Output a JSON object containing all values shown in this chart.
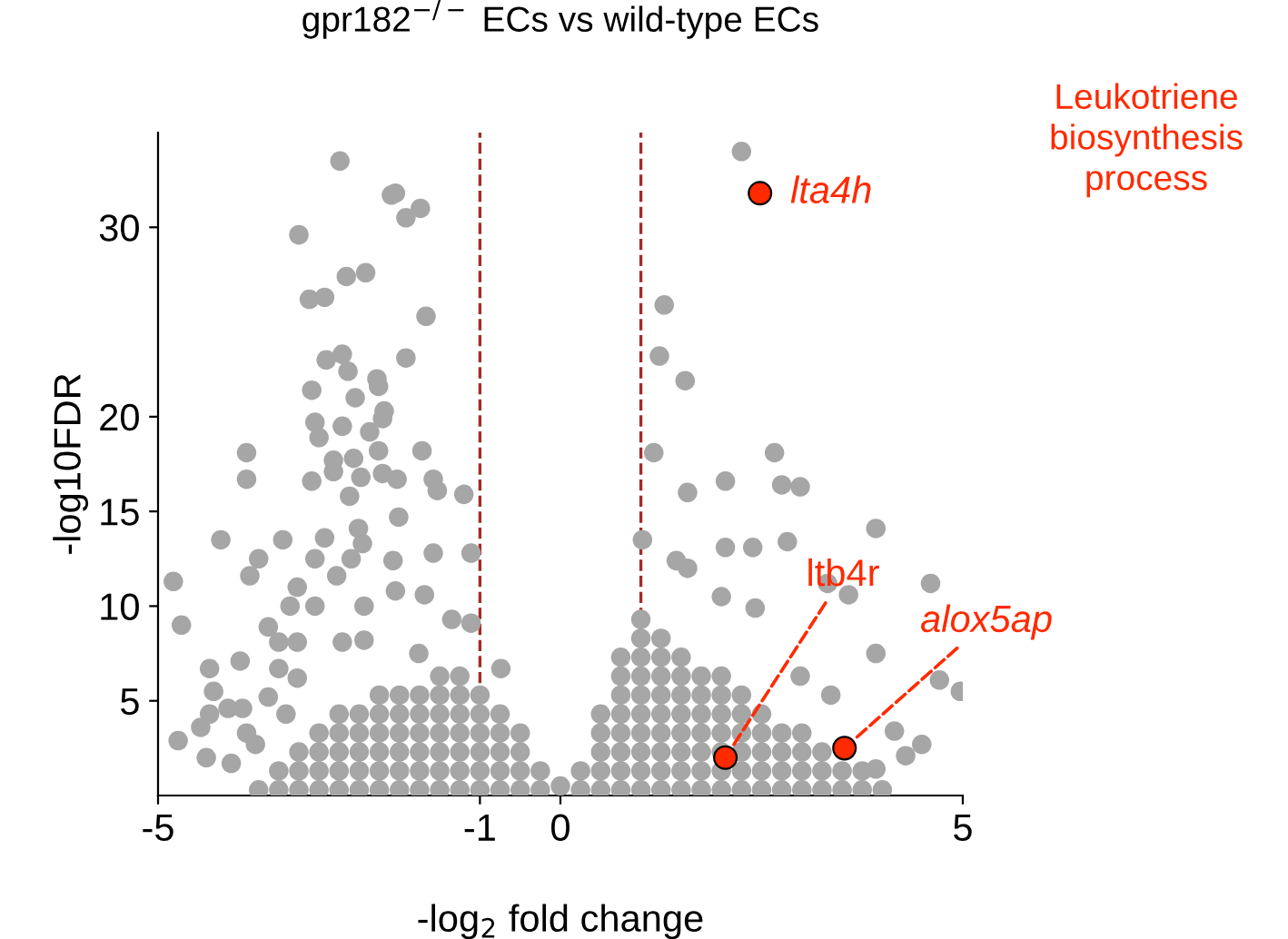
{
  "chart_data": {
    "type": "scatter",
    "title": "gpr182$^{−/−}$ ECs vs wild-type ECs",
    "xlabel": "-log$_{2}$ fold change",
    "ylabel": "-log10FDR",
    "xlim": [
      -5,
      5
    ],
    "ylim": [
      0,
      35
    ],
    "xticks": [
      -5,
      -1,
      0,
      5
    ],
    "yticks": [
      5,
      10,
      15,
      20,
      30
    ],
    "grid": false,
    "marker": "circle",
    "ref_lines": [
      {
        "axis": "x",
        "value": -1,
        "color": "#a52a2a",
        "line_style": "dashed"
      },
      {
        "axis": "x",
        "value": 1,
        "color": "#a52a2a",
        "line_style": "dashed"
      }
    ],
    "series": [
      {
        "color": "#a6a6a6",
        "x": [
          -4.81,
          -4.71,
          -4.75,
          -4.22,
          -3.9,
          -3.9,
          -4.36,
          -3.98,
          -3.86,
          -3.75,
          -3.45,
          -3.63,
          -2.74,
          -3.25,
          -2.1,
          -2.05,
          -1.74,
          -1.92,
          -2.66,
          -2.42,
          -3.12,
          -2.93,
          -1.67,
          -2.71,
          -2.91,
          -1.92,
          -2.64,
          -2.28,
          -2.26,
          -3.09,
          -2.55,
          -2.19,
          -3.05,
          -2.71,
          -2.21,
          -3.0,
          -2.37,
          -1.72,
          -2.82,
          -2.57,
          -2.26,
          -2.82,
          -2.48,
          -2.21,
          -3.09,
          -2.03,
          -1.58,
          -1.2,
          -1.53,
          -2.62,
          -2.01,
          -2.51,
          -2.93,
          -2.46,
          -2.08,
          -3.05,
          -1.11,
          -1.58,
          -2.6,
          -3.27,
          -2.78,
          -3.36,
          -3.05,
          -2.44,
          -2.05,
          -1.69,
          -3.5,
          -3.27,
          -2.71,
          -2.44,
          -1.76,
          -1.35,
          -1.11,
          -0.74,
          -3.5,
          -3.27,
          -4.31,
          -4.13,
          -3.95,
          -3.63,
          -4.47,
          -4.36,
          -3.9,
          -4.4,
          -4.09,
          -3.79,
          -3.41,
          2.25,
          1.29,
          1.23,
          1.55,
          1.16,
          2.66,
          2.05,
          1.58,
          2.75,
          2.98,
          3.92,
          1.02,
          2.05,
          2.39,
          2.82,
          1.44,
          1.58,
          2.0,
          3.32,
          3.58,
          4.6,
          2.42,
          3.92,
          2.98,
          4.71,
          4.97,
          3.36,
          4.15,
          4.49,
          4.29,
          3.92,
          -3.75,
          -3.5,
          -3.5,
          -3.25,
          -3.25,
          -3.25,
          -3.0,
          -3.0,
          -3.0,
          -3.0,
          -2.75,
          -2.75,
          -2.75,
          -2.75,
          -2.75,
          -2.5,
          -2.5,
          -2.5,
          -2.5,
          -2.5,
          -2.25,
          -2.25,
          -2.25,
          -2.25,
          -2.25,
          -2.25,
          -2.0,
          -2.0,
          -2.0,
          -2.0,
          -2.0,
          -2.0,
          -1.75,
          -1.75,
          -1.75,
          -1.75,
          -1.75,
          -1.75,
          -1.5,
          -1.5,
          -1.5,
          -1.5,
          -1.5,
          -1.5,
          -1.5,
          -1.25,
          -1.25,
          -1.25,
          -1.25,
          -1.25,
          -1.25,
          -1.25,
          -1.0,
          -1.0,
          -1.0,
          -1.0,
          -1.0,
          -1.0,
          -0.75,
          -0.75,
          -0.75,
          -0.75,
          -0.75,
          -0.5,
          -0.5,
          -0.5,
          -0.5,
          -0.25,
          -0.25,
          0.0,
          0.25,
          0.25,
          0.5,
          0.5,
          0.5,
          0.5,
          0.5,
          0.75,
          0.75,
          0.75,
          0.75,
          0.75,
          0.75,
          0.75,
          0.75,
          1.0,
          1.0,
          1.0,
          1.0,
          1.0,
          1.0,
          1.0,
          1.0,
          1.0,
          1.0,
          1.25,
          1.25,
          1.25,
          1.25,
          1.25,
          1.25,
          1.25,
          1.25,
          1.25,
          1.5,
          1.5,
          1.5,
          1.5,
          1.5,
          1.5,
          1.5,
          1.5,
          1.75,
          1.75,
          1.75,
          1.75,
          1.75,
          1.75,
          1.75,
          2.0,
          2.0,
          2.0,
          2.0,
          2.0,
          2.0,
          2.0,
          2.25,
          2.25,
          2.25,
          2.25,
          2.25,
          2.25,
          2.5,
          2.5,
          2.5,
          2.5,
          2.5,
          2.75,
          2.75,
          2.75,
          2.75,
          3.0,
          3.0,
          3.0,
          3.0,
          3.25,
          3.25,
          3.25,
          3.5,
          3.5,
          3.75,
          3.75,
          4.0
        ],
        "values": [
          11.3,
          9.0,
          2.9,
          13.5,
          18.1,
          16.7,
          6.7,
          7.1,
          11.6,
          12.5,
          13.5,
          8.9,
          33.5,
          29.6,
          31.7,
          31.8,
          31.0,
          30.5,
          27.4,
          27.6,
          26.2,
          26.3,
          25.3,
          23.3,
          23.0,
          23.1,
          22.4,
          22.0,
          21.6,
          21.4,
          21.0,
          20.3,
          19.7,
          19.5,
          19.9,
          18.9,
          19.2,
          18.2,
          17.7,
          17.8,
          18.2,
          17.1,
          16.8,
          17.0,
          16.6,
          16.7,
          16.7,
          15.9,
          16.1,
          15.8,
          14.7,
          14.1,
          13.6,
          13.3,
          12.4,
          12.5,
          12.8,
          12.8,
          12.5,
          11.0,
          11.6,
          10.0,
          10.0,
          10.0,
          10.8,
          10.6,
          8.1,
          8.1,
          8.1,
          8.2,
          7.5,
          9.3,
          9.1,
          6.7,
          6.7,
          6.2,
          5.5,
          4.6,
          4.6,
          5.2,
          3.6,
          4.3,
          3.3,
          2.0,
          1.7,
          2.7,
          4.3,
          34.0,
          25.9,
          23.2,
          21.9,
          18.1,
          18.1,
          16.6,
          16.0,
          16.4,
          16.3,
          14.1,
          13.5,
          13.1,
          13.1,
          13.4,
          12.4,
          12.0,
          10.5,
          11.2,
          10.6,
          11.2,
          9.9,
          7.5,
          6.3,
          6.1,
          5.5,
          5.3,
          3.4,
          2.7,
          2.1,
          1.4,
          0.3,
          0.3,
          1.3,
          0.3,
          1.3,
          2.3,
          0.3,
          1.3,
          2.3,
          3.3,
          0.3,
          1.3,
          2.3,
          3.3,
          4.3,
          0.3,
          1.3,
          2.3,
          3.3,
          4.3,
          0.3,
          1.3,
          2.3,
          3.3,
          4.3,
          5.3,
          0.3,
          1.3,
          2.3,
          3.3,
          4.3,
          5.3,
          0.3,
          1.3,
          2.3,
          3.3,
          4.3,
          5.3,
          0.3,
          1.3,
          2.3,
          3.3,
          4.3,
          5.3,
          6.3,
          0.3,
          1.3,
          2.3,
          3.3,
          4.3,
          5.3,
          6.3,
          0.3,
          1.3,
          2.3,
          3.3,
          4.3,
          5.3,
          0.3,
          1.3,
          2.3,
          3.3,
          4.3,
          0.3,
          1.3,
          2.3,
          3.3,
          0.3,
          1.3,
          0.5,
          0.3,
          1.3,
          0.3,
          1.3,
          2.3,
          3.3,
          4.3,
          0.3,
          1.3,
          2.3,
          3.3,
          4.3,
          5.3,
          6.3,
          7.3,
          0.3,
          1.3,
          2.3,
          3.3,
          4.3,
          5.3,
          6.3,
          7.3,
          8.3,
          9.3,
          0.3,
          1.3,
          2.3,
          3.3,
          4.3,
          5.3,
          6.3,
          7.3,
          8.3,
          0.3,
          1.3,
          2.3,
          3.3,
          4.3,
          5.3,
          6.3,
          7.3,
          0.3,
          1.3,
          2.3,
          3.3,
          4.3,
          5.3,
          6.3,
          0.3,
          1.3,
          2.3,
          3.3,
          4.3,
          5.3,
          6.3,
          0.3,
          1.3,
          2.3,
          3.3,
          4.3,
          5.3,
          0.3,
          1.3,
          2.3,
          3.3,
          4.3,
          0.3,
          1.3,
          2.3,
          3.3,
          0.3,
          1.3,
          2.3,
          3.3,
          0.3,
          1.3,
          2.3,
          0.3,
          1.3,
          0.3,
          1.3,
          0.3
        ]
      },
      {
        "color": "#ff2a00",
        "x": [
          2.48,
          2.05,
          3.53
        ],
        "values": [
          31.8,
          2.0,
          2.5
        ]
      }
    ],
    "annotations": [
      {
        "text": "lta4h",
        "x": 2.48,
        "y": 31.8
      },
      {
        "text": "ltb4r",
        "x": 2.05,
        "y": 2.0
      },
      {
        "text": "alox5ap",
        "x": 3.53,
        "y": 2.5
      },
      "Leukotriene\nbiosynthesis\nprocess"
    ]
  }
}
